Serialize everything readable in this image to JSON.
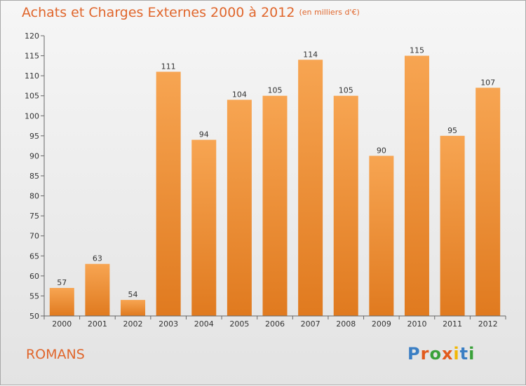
{
  "header": {
    "title": "Achats et Charges Externes 2000 à 2012",
    "subtitle": "(en milliers d'€)"
  },
  "footer": {
    "city": "ROMANS",
    "logo": "Proxiti",
    "logo_colors": [
      "#3b7fc4",
      "#e25a1c",
      "#3aa13a",
      "#e25a1c",
      "#f2b705",
      "#3b7fc4",
      "#3aa13a"
    ]
  },
  "colors": {
    "bar_top": "#f7a552",
    "bar_bottom": "#e07a1f",
    "text": "#333333",
    "axis": "#666666"
  },
  "chart_data": {
    "type": "bar",
    "title": "Achats et Charges Externes 2000 à 2012",
    "subtitle": "(en milliers d'€)",
    "categories": [
      "2000",
      "2001",
      "2002",
      "2003",
      "2004",
      "2005",
      "2006",
      "2007",
      "2008",
      "2009",
      "2010",
      "2011",
      "2012"
    ],
    "values": [
      57,
      63,
      54,
      111,
      94,
      104,
      105,
      114,
      105,
      90,
      115,
      95,
      107
    ],
    "ylim": [
      50,
      120
    ],
    "yticks": [
      50,
      55,
      60,
      65,
      70,
      75,
      80,
      85,
      90,
      95,
      100,
      105,
      110,
      115,
      120
    ],
    "grid": false,
    "data_labels": true
  }
}
